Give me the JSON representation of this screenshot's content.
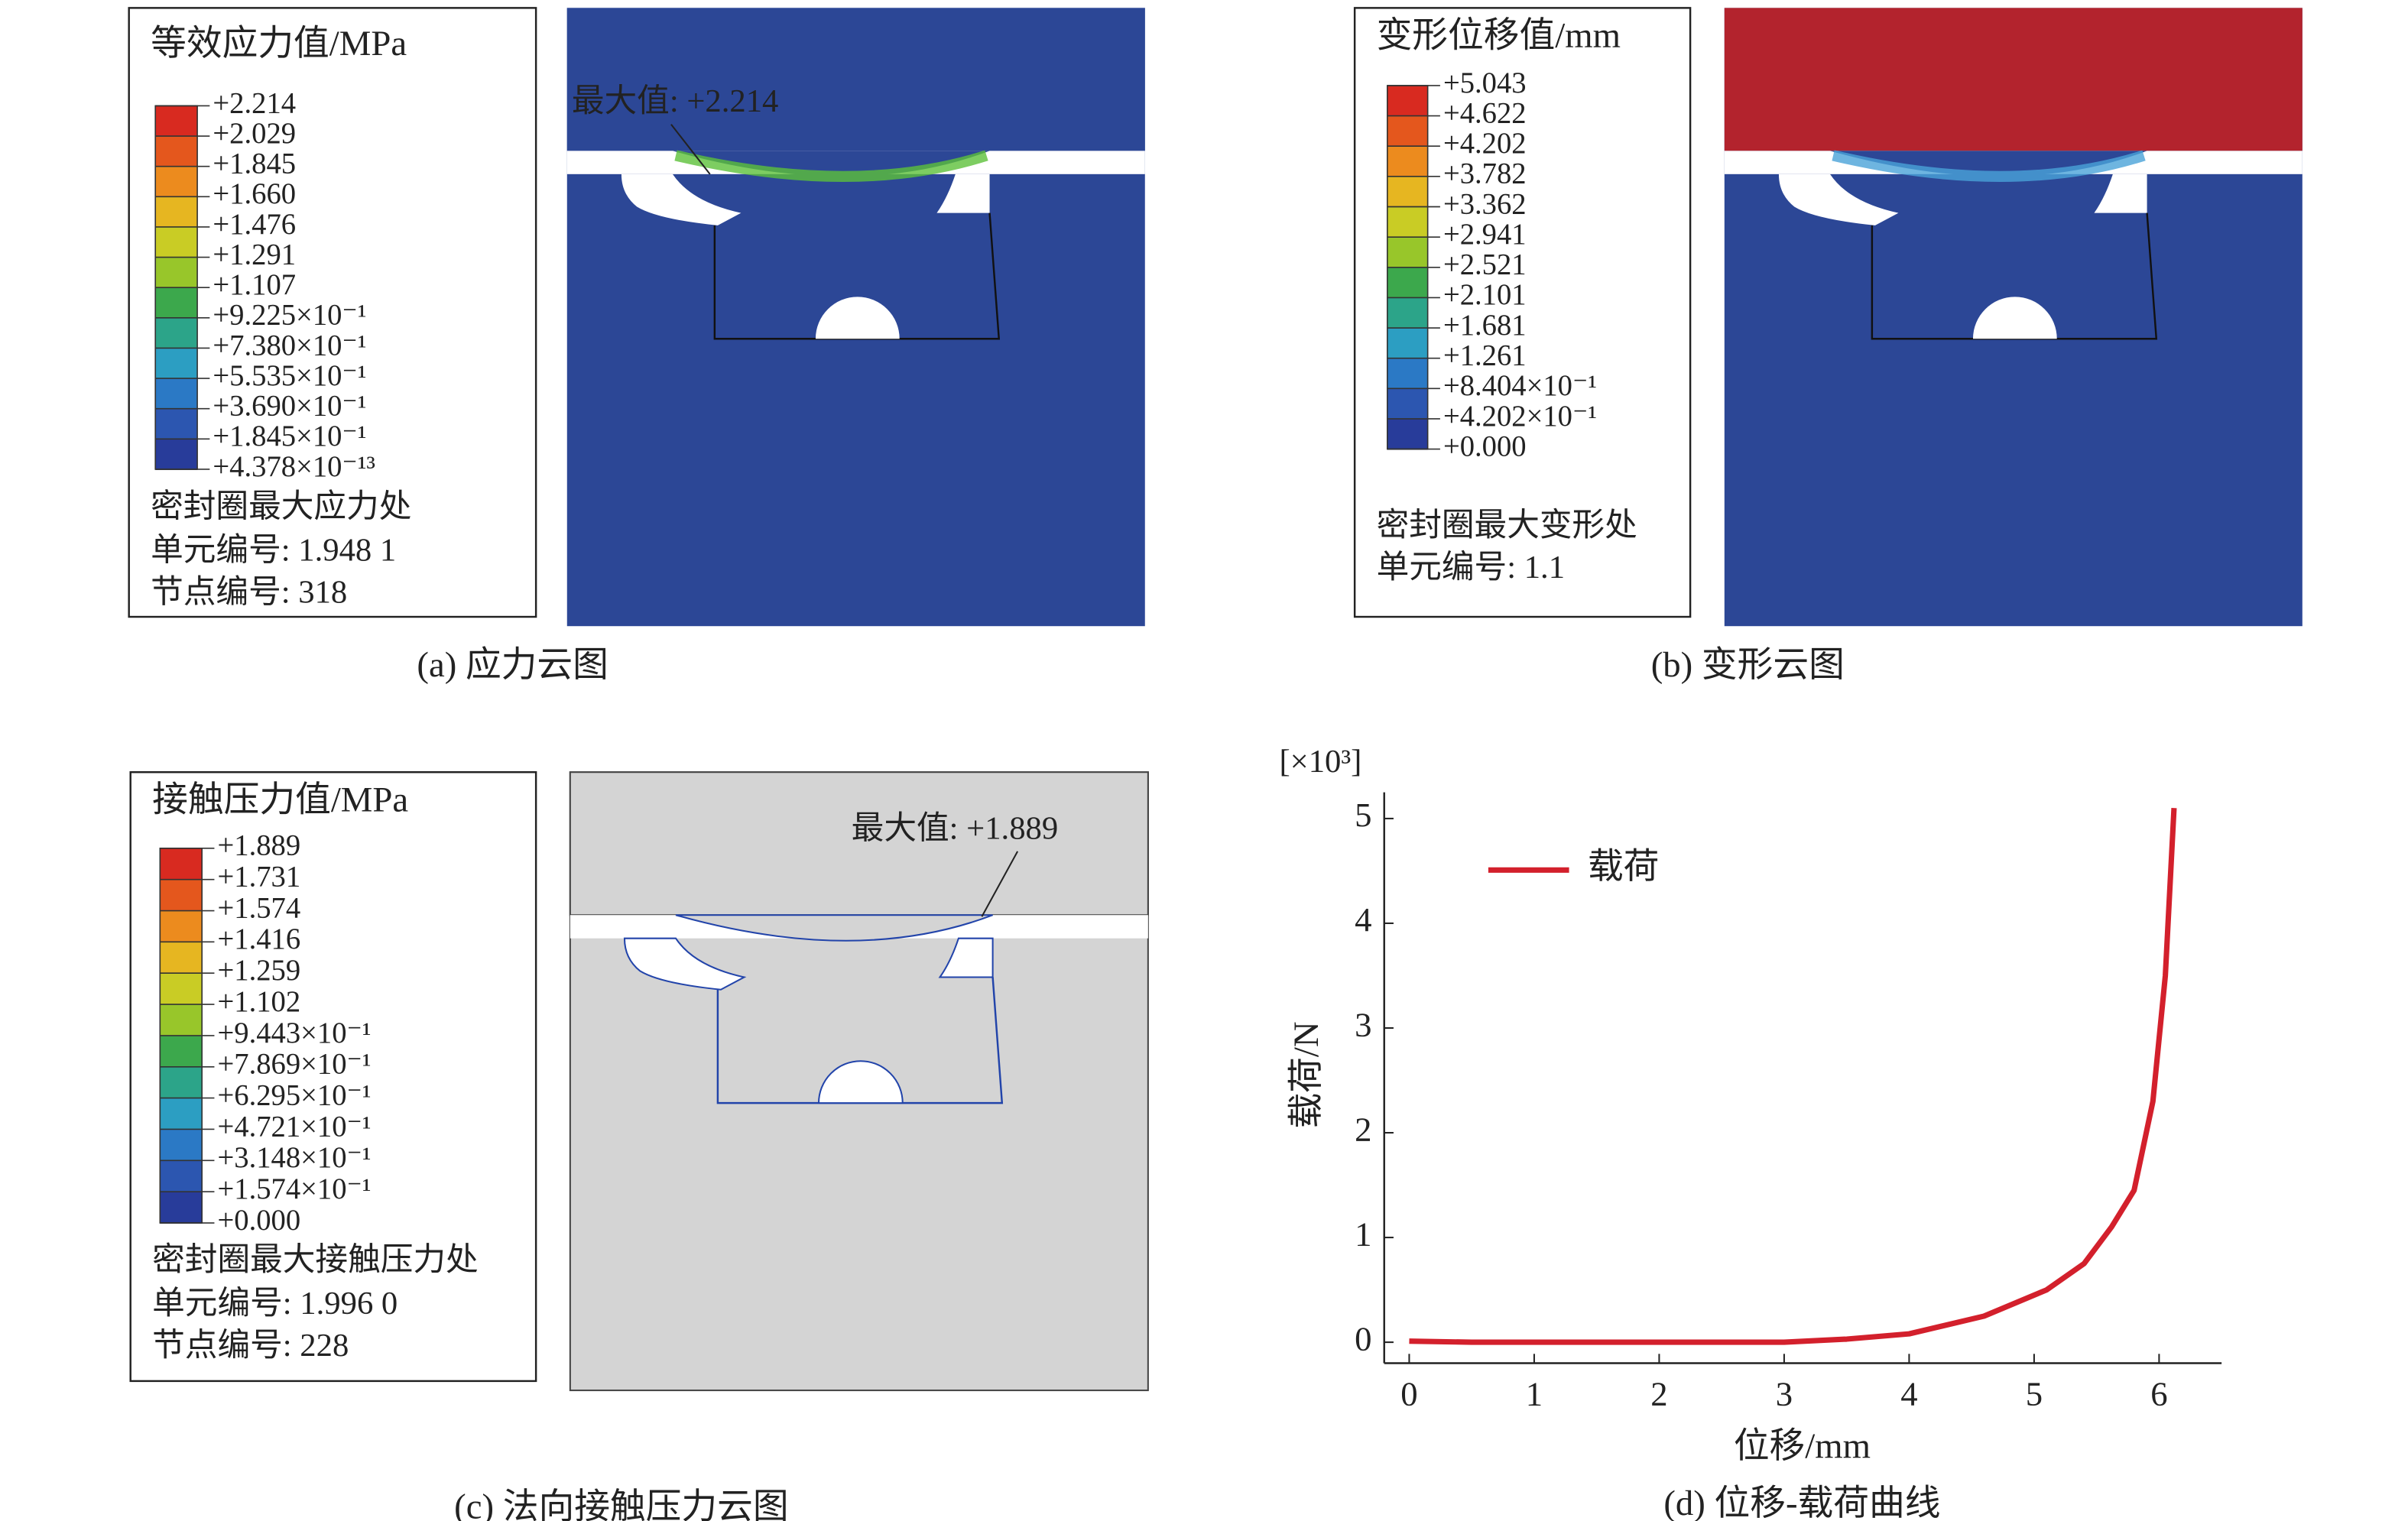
{
  "panels": [
    {
      "legend_title": "等效应力值/MPa",
      "legend_labels": [
        "+2.214",
        "+2.029",
        "+1.845",
        "+1.660",
        "+1.476",
        "+1.291",
        "+1.107",
        "+9.225×10⁻¹",
        "+7.380×10⁻¹",
        "+5.535×10⁻¹",
        "+3.690×10⁻¹",
        "+1.845×10⁻¹",
        "+4.378×10⁻¹³"
      ],
      "notes": [
        "密封圈最大应力处",
        "单元编号: 1.948 1",
        "节点编号: 318"
      ],
      "annotation": "最大值: +2.214",
      "caption": "(a) 应力云图"
    },
    {
      "legend_title": "变形位移值/mm",
      "legend_labels": [
        "+5.043",
        "+4.622",
        "+4.202",
        "+3.782",
        "+3.362",
        "+2.941",
        "+2.521",
        "+2.101",
        "+1.681",
        "+1.261",
        "+8.404×10⁻¹",
        "+4.202×10⁻¹",
        "+0.000"
      ],
      "notes": [
        "密封圈最大变形处",
        "单元编号: 1.1"
      ],
      "caption": "(b) 变形云图"
    },
    {
      "legend_title": "接触压力值/MPa",
      "legend_labels": [
        "+1.889",
        "+1.731",
        "+1.574",
        "+1.416",
        "+1.259",
        "+1.102",
        "+9.443×10⁻¹",
        "+7.869×10⁻¹",
        "+6.295×10⁻¹",
        "+4.721×10⁻¹",
        "+3.148×10⁻¹",
        "+1.574×10⁻¹",
        "+0.000"
      ],
      "notes": [
        "密封圈最大接触压力处",
        "单元编号: 1.996 0",
        "节点编号: 228"
      ],
      "annotation": "最大值: +1.889",
      "caption": "(c) 法向接触压力云图"
    }
  ],
  "chart_data": {
    "type": "line",
    "caption": "(d) 位移-载荷曲线",
    "y_unit": "[×10³]",
    "xlabel": "位移/mm",
    "ylabel": "载荷/N",
    "x": [
      0,
      0.5,
      1,
      2,
      3,
      3.5,
      4,
      4.6,
      5.1,
      5.4,
      5.62,
      5.8,
      5.95,
      6.05,
      6.12
    ],
    "series": [
      {
        "name": "载荷",
        "color": "#d3202c",
        "values": [
          0.01,
          0,
          0,
          0,
          0,
          0.03,
          0.08,
          0.25,
          0.5,
          0.75,
          1.1,
          1.45,
          2.3,
          3.5,
          5.1
        ]
      }
    ],
    "xlim": [
      -0.2,
      6.5
    ],
    "ylim": [
      -0.2,
      5.25
    ],
    "xticks": [
      0,
      1,
      2,
      3,
      4,
      5,
      6
    ],
    "yticks": [
      0,
      1,
      2,
      3,
      4,
      5
    ],
    "legend": "upper left"
  }
}
